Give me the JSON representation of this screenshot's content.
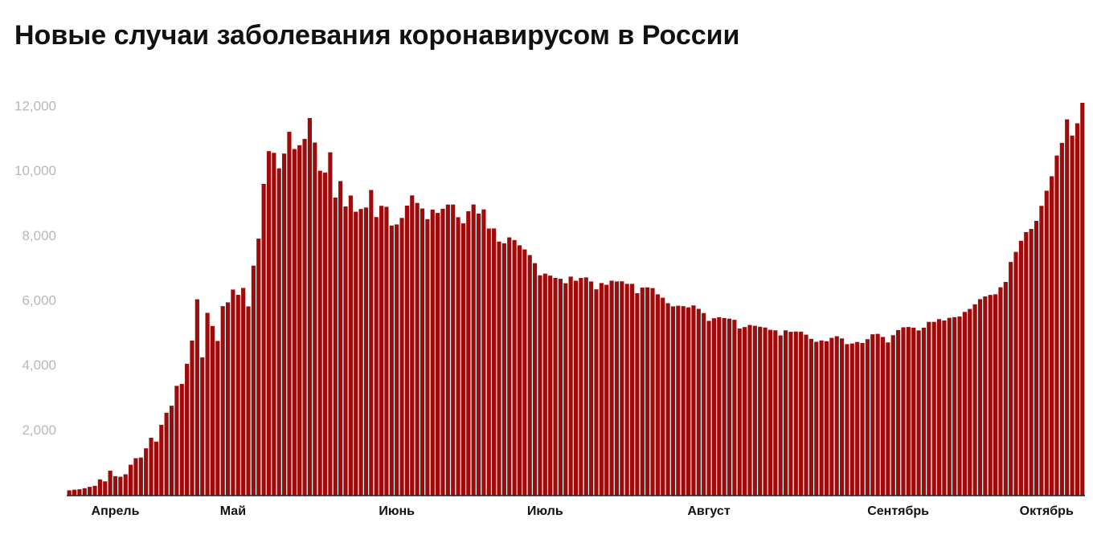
{
  "chart_data": {
    "type": "bar",
    "title": "Новые случаи заболевания коронавирусом в России",
    "color": "#9f0a0a",
    "categories": [
      null,
      null,
      null,
      null,
      null,
      null,
      null,
      null,
      null,
      "Апрель",
      null,
      null,
      null,
      null,
      null,
      null,
      null,
      null,
      null,
      null,
      null,
      null,
      null,
      null,
      null,
      null,
      null,
      null,
      null,
      null,
      null,
      null,
      "Май",
      null,
      null,
      null,
      null,
      null,
      null,
      null,
      null,
      null,
      null,
      null,
      null,
      null,
      null,
      null,
      null,
      null,
      null,
      null,
      null,
      null,
      null,
      null,
      null,
      null,
      null,
      null,
      null,
      null,
      null,
      null,
      "Июнь",
      null,
      null,
      null,
      null,
      null,
      null,
      null,
      null,
      null,
      null,
      null,
      null,
      null,
      null,
      null,
      null,
      null,
      null,
      null,
      null,
      null,
      null,
      null,
      null,
      null,
      null,
      null,
      null,
      "Июль",
      null,
      null,
      null,
      null,
      null,
      null,
      null,
      null,
      null,
      null,
      null,
      null,
      null,
      null,
      null,
      null,
      null,
      null,
      null,
      null,
      null,
      null,
      null,
      null,
      null,
      null,
      null,
      null,
      null,
      null,
      null,
      "Август",
      null,
      null,
      null,
      null,
      null,
      null,
      null,
      null,
      null,
      null,
      null,
      null,
      null,
      null,
      null,
      null,
      null,
      null,
      null,
      null,
      null,
      null,
      null,
      null,
      null,
      null,
      null,
      null,
      null,
      null,
      null,
      null,
      null,
      null,
      null,
      null,
      "Сентябрь",
      null,
      null,
      null,
      null,
      null,
      null,
      null,
      null,
      null,
      null,
      null,
      null,
      null,
      null,
      null,
      null,
      null,
      null,
      null,
      null,
      null,
      null,
      null,
      null,
      null,
      null,
      null,
      null,
      "Октябрь",
      null,
      null,
      null,
      null,
      null,
      null,
      null
    ],
    "values": [
      163,
      182,
      196,
      228,
      270,
      302,
      501,
      440,
      771,
      601,
      582,
      658,
      954,
      1154,
      1175,
      1459,
      1786,
      1667,
      2186,
      2558,
      2774,
      3388,
      3448,
      4070,
      4785,
      6060,
      4268,
      5642,
      5236,
      4774,
      5849,
      5966,
      6361,
      6198,
      6411,
      5841,
      7099,
      7933,
      9623,
      10633,
      10581,
      10102,
      10559,
      11231,
      10699,
      10817,
      11012,
      11656,
      10899,
      10028,
      9974,
      10598,
      9200,
      9709,
      8926,
      9263,
      8764,
      8849,
      8894,
      9434,
      8599,
      8946,
      8915,
      8338,
      8371,
      8572,
      8952,
      9268,
      9035,
      8863,
      8536,
      8831,
      8726,
      8855,
      8984,
      8985,
      8595,
      8404,
      8779,
      8987,
      8706,
      8835,
      8246,
      8248,
      7843,
      7790,
      7972,
      7889,
      7728,
      7600,
      7425,
      7176,
      6800,
      6852,
      6791,
      6719,
      6693,
      6556,
      6760,
      6632,
      6718,
      6736,
      6611,
      6368,
      6562,
      6509,
      6635,
      6611,
      6615,
      6537,
      6537,
      6248,
      6422,
      6428,
      6406,
      6214,
      6109,
      5940,
      5842,
      5862,
      5848,
      5811,
      5871,
      5765,
      5635,
      5395,
      5475,
      5509,
      5482,
      5462,
      5427,
      5159,
      5204,
      5267,
      5241,
      5212,
      5189,
      5118,
      5102,
      4945,
      5102,
      5057,
      5065,
      5061,
      4969,
      4839,
      4748,
      4790,
      4767,
      4870,
      4921,
      4852,
      4676,
      4696,
      4744,
      4711,
      4829,
      4980,
      4993,
      4897,
      4729,
      4952,
      5110,
      5195,
      5205,
      5185,
      5099,
      5185,
      5363,
      5363,
      5449,
      5406,
      5488,
      5509,
      5529,
      5670,
      5762,
      5905,
      6065,
      6148,
      6196,
      6215,
      6431,
      6595,
      7212,
      7523,
      7867,
      8135,
      8232,
      8481,
      8945,
      9412,
      9859,
      10499,
      10888,
      11615,
      11115,
      11493,
      12126
    ],
    "ylim": [
      0,
      12200
    ],
    "yticks": [
      {
        "value": 2000,
        "label": "2,000"
      },
      {
        "value": 4000,
        "label": "4,000"
      },
      {
        "value": 6000,
        "label": "6,000"
      },
      {
        "value": 8000,
        "label": "8,000"
      },
      {
        "value": 10000,
        "label": "10,000"
      },
      {
        "value": 12000,
        "label": "12,000"
      }
    ],
    "grid": false
  }
}
